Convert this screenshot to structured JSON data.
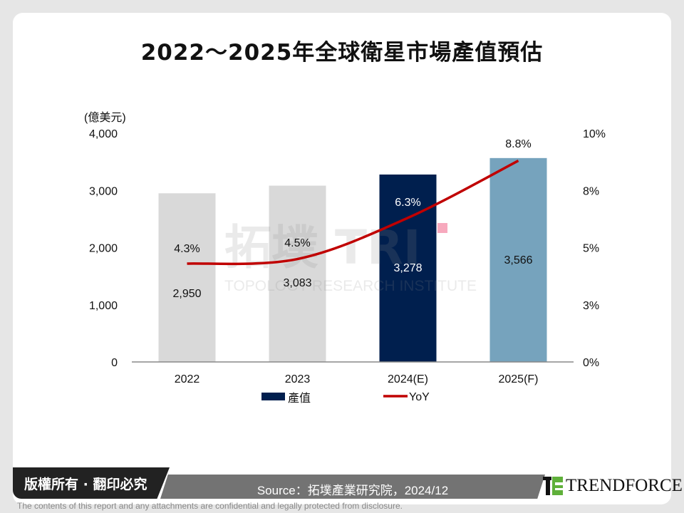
{
  "title": "2022～2025年全球衛星市場產值預估",
  "chart_data": {
    "type": "bar+line",
    "title": "2022～2025年全球衛星市場產值預估",
    "categories": [
      "2022",
      "2023",
      "2024(E)",
      "2025(F)"
    ],
    "ylabel": "(億美元)",
    "ylim": [
      0,
      4000
    ],
    "y_ticks": [
      "0",
      "1,000",
      "2,000",
      "3,000",
      "4,000"
    ],
    "y2lim": [
      0,
      10
    ],
    "y2_ticks": [
      "0%",
      "3%",
      "5%",
      "8%",
      "10%"
    ],
    "series": [
      {
        "name": "產值",
        "type": "bar",
        "values": [
          2950,
          3083,
          3278,
          3566
        ],
        "labels": [
          "2,950",
          "3,083",
          "3,278",
          "3,566"
        ],
        "colors": [
          "#d9d9d9",
          "#d9d9d9",
          "#001f4e",
          "#76a3bd"
        ]
      },
      {
        "name": "YoY",
        "type": "line",
        "axis": "right",
        "color": "#c00000",
        "values": [
          4.3,
          4.5,
          6.3,
          8.8
        ],
        "labels": [
          "4.3%",
          "4.5%",
          "6.3%",
          "8.8%"
        ]
      }
    ],
    "legend": "bottom",
    "grid": false
  },
  "footer": {
    "copyright": "版權所有 · 翻印必究",
    "source": "Source：拓墣產業研究院，2024/12",
    "logo": "TRENDFORCE",
    "disclaimer": "The contents of this report and any attachments are confidential and legally protected from disclosure."
  },
  "watermark": "拓墣 TRI TOPOLOGY RESEARCH INSTITUTE"
}
